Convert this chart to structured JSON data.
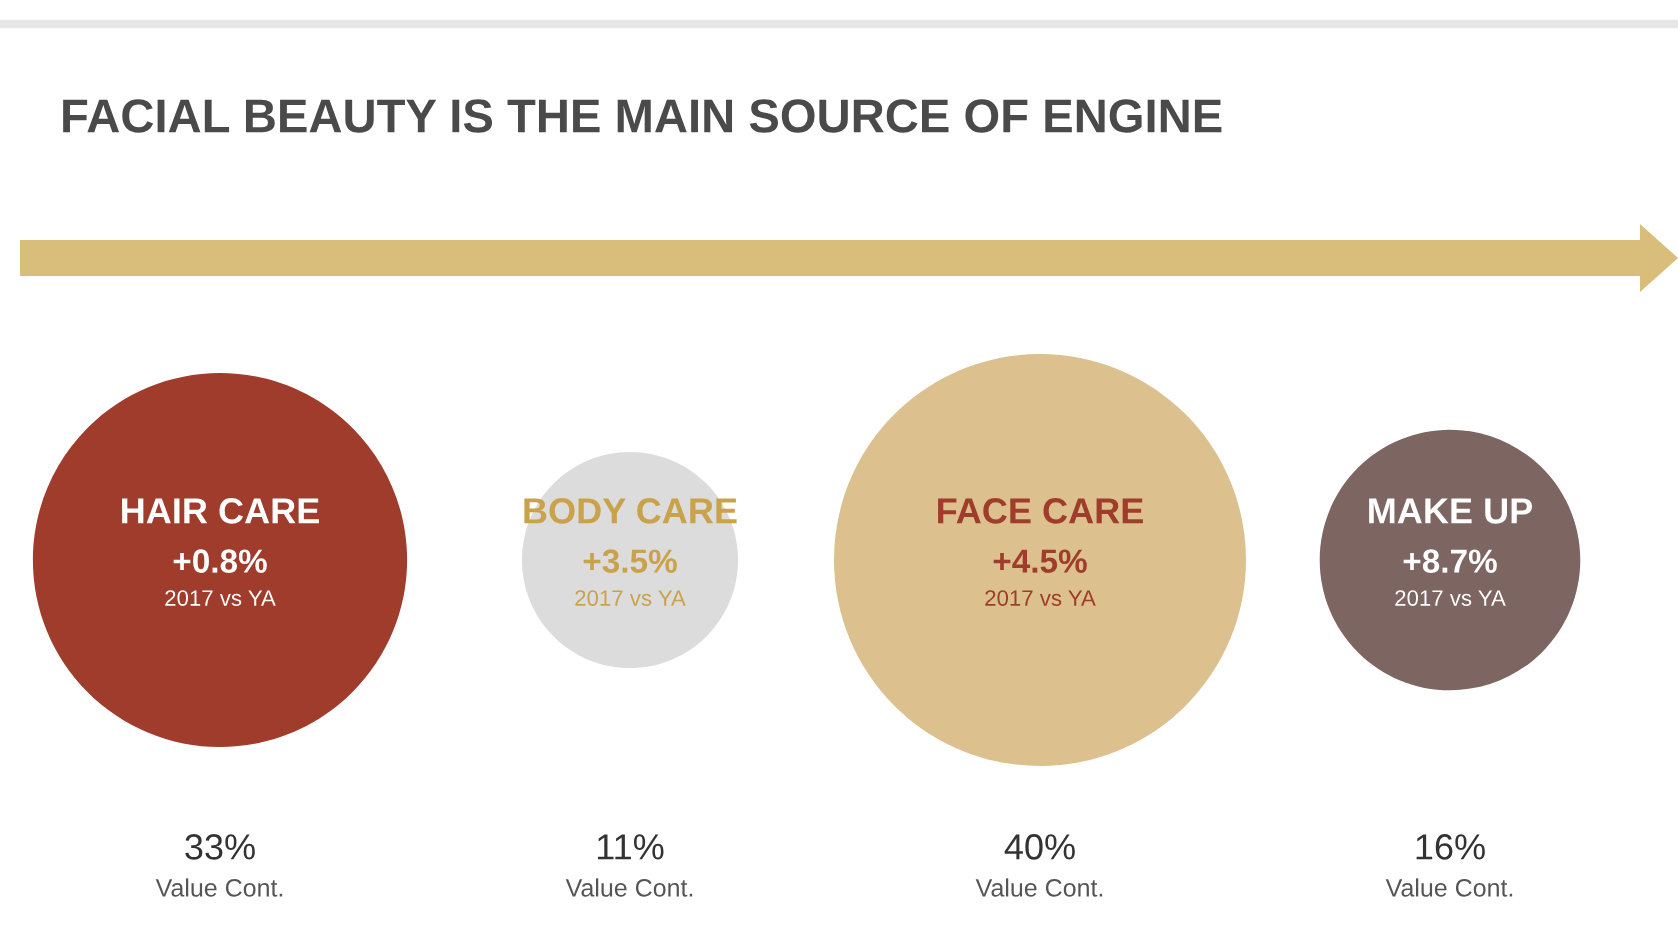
{
  "chart_data": {
    "type": "other",
    "title": "FACIAL BEAUTY IS THE MAIN SOURCE OF ENGINE",
    "categories": [
      "HAIR CARE",
      "BODY CARE",
      "FACE CARE",
      "MAKE UP"
    ],
    "colors": [
      "#a03c2c",
      "#dcdcdc",
      "#dcc08e",
      "#7d6562"
    ],
    "values": [
      33,
      11,
      40,
      16
    ],
    "value_labels": [
      "33%",
      "11%",
      "40%",
      "16%"
    ],
    "annotations": [
      {
        "text": "+0.8%",
        "x": "HAIR CARE"
      },
      {
        "text": "+3.5%",
        "x": "BODY CARE"
      },
      {
        "text": "+4.5%",
        "x": "FACE CARE"
      },
      {
        "text": "+8.7%",
        "x": "MAKE UP"
      },
      {
        "text": "2017 vs YA",
        "x": "HAIR CARE"
      },
      {
        "text": "2017 vs YA",
        "x": "BODY CARE"
      },
      {
        "text": "2017 vs YA",
        "x": "FACE CARE"
      },
      {
        "text": "2017 vs YA",
        "x": "MAKE UP"
      },
      {
        "text": "Value Cont.",
        "x": "HAIR CARE"
      },
      {
        "text": "Value Cont.",
        "x": "BODY CARE"
      },
      {
        "text": "Value Cont.",
        "x": "FACE CARE"
      },
      {
        "text": "Value Cont.",
        "x": "MAKE UP"
      }
    ]
  }
}
